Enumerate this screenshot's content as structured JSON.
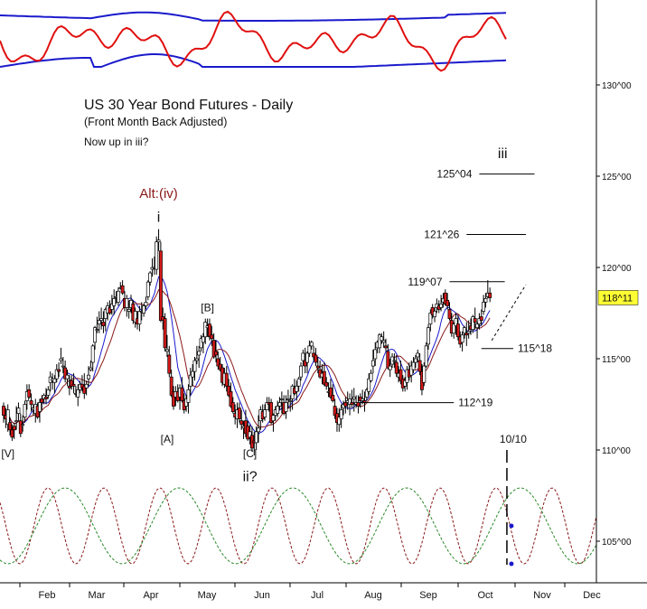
{
  "chart_data": {
    "type": "candlestick",
    "title": "US 30 Year Bond Futures - Daily",
    "subtitle": "(Front Month Back Adjusted)",
    "note": "Now up in iii?",
    "y_ticks": [
      "130^00",
      "125^00",
      "120^00",
      "115^00",
      "110^00",
      "105^00"
    ],
    "x_ticks": [
      "Feb",
      "Mar",
      "Apr",
      "May",
      "Jun",
      "Jul",
      "Aug",
      "Sep",
      "Oct",
      "Nov",
      "Dec"
    ],
    "last_price": "118^11",
    "price_range": [
      103,
      134
    ],
    "wave_labels": [
      {
        "text": "[V]",
        "date_index": 2,
        "price": 109.6
      },
      {
        "text": "i",
        "date_index": 73,
        "price": 122.5
      },
      {
        "text": "Alt:(iv)",
        "date_index": 73,
        "price": 123.8,
        "color": "#8b1a1a"
      },
      {
        "text": "[A]",
        "date_index": 77,
        "price": 110.4
      },
      {
        "text": "[B]",
        "date_index": 96,
        "price": 117.6
      },
      {
        "text": "[C]",
        "date_index": 116,
        "price": 109.6
      },
      {
        "text": "ii?",
        "date_index": 116,
        "price": 108.3
      },
      {
        "text": "iii",
        "date_index": 235,
        "price": 126.0
      }
    ],
    "levels": [
      {
        "label": "125^04",
        "price": 125.12,
        "from_index": 224,
        "to_index": 250
      },
      {
        "label": "121^26",
        "price": 121.81,
        "from_index": 218,
        "to_index": 246
      },
      {
        "label": "119^07",
        "price": 119.22,
        "from_index": 210,
        "to_index": 236
      },
      {
        "label": "115^18",
        "price": 115.56,
        "from_index": 225,
        "to_index": 240
      },
      {
        "label": "112^19",
        "price": 112.59,
        "from_index": 168,
        "to_index": 212
      }
    ],
    "cycle_marker": {
      "label": "10/10",
      "date_index": 237
    },
    "candles": [
      [
        112.4,
        112.6,
        111.5,
        111.9
      ],
      [
        111.9,
        112.3,
        111.2,
        111.7
      ],
      [
        111.4,
        112.5,
        111.0,
        112.2
      ],
      [
        111.5,
        111.8,
        110.8,
        111.1
      ],
      [
        111.1,
        111.4,
        110.5,
        110.7
      ],
      [
        111.3,
        111.5,
        110.6,
        111.1
      ],
      [
        111.6,
        112.4,
        111.1,
        111.6
      ],
      [
        112.0,
        112.6,
        111.6,
        112.3
      ],
      [
        111.6,
        112.0,
        110.7,
        110.9
      ],
      [
        111.4,
        111.9,
        111.0,
        111.4
      ],
      [
        111.8,
        112.7,
        111.5,
        112.5
      ],
      [
        112.7,
        113.6,
        112.2,
        113.2
      ],
      [
        113.3,
        113.6,
        112.8,
        112.9
      ],
      [
        112.7,
        113.1,
        112.1,
        112.5
      ],
      [
        112.2,
        112.5,
        111.9,
        112.3
      ],
      [
        112.0,
        112.8,
        111.5,
        112.5
      ],
      [
        112.4,
        112.6,
        111.7,
        111.8
      ],
      [
        112.1,
        112.8,
        111.5,
        112.6
      ],
      [
        112.8,
        113.0,
        112.2,
        112.6
      ],
      [
        112.8,
        113.1,
        112.5,
        113.0
      ],
      [
        112.9,
        113.4,
        112.5,
        112.8
      ],
      [
        113.0,
        113.5,
        112.8,
        113.3
      ],
      [
        113.7,
        114.3,
        113.2,
        114.0
      ],
      [
        113.8,
        114.2,
        113.3,
        113.9
      ],
      [
        113.7,
        114.1,
        113.1,
        113.9
      ],
      [
        113.9,
        114.7,
        113.7,
        114.4
      ],
      [
        114.4,
        114.8,
        114.0,
        114.3
      ],
      [
        114.9,
        115.6,
        114.7,
        115.0
      ],
      [
        114.6,
        115.1,
        114.2,
        114.6
      ],
      [
        114.5,
        114.9,
        113.7,
        113.9
      ],
      [
        113.9,
        114.4,
        113.5,
        114.1
      ],
      [
        113.5,
        114.1,
        113.0,
        113.4
      ],
      [
        113.8,
        114.1,
        113.3,
        113.5
      ],
      [
        113.6,
        114.2,
        113.1,
        113.5
      ],
      [
        113.1,
        113.5,
        112.9,
        113.1
      ],
      [
        112.9,
        113.6,
        112.4,
        113.3
      ],
      [
        113.3,
        113.8,
        113.1,
        113.6
      ],
      [
        113.6,
        114.1,
        113.2,
        113.4
      ],
      [
        113.5,
        114.2,
        112.8,
        113.1
      ],
      [
        113.4,
        113.8,
        113.0,
        113.6
      ],
      [
        113.9,
        114.6,
        113.5,
        114.1
      ],
      [
        114.4,
        114.9,
        114.3,
        114.5
      ],
      [
        114.8,
        115.8,
        114.3,
        115.7
      ],
      [
        115.9,
        116.8,
        115.5,
        116.7
      ],
      [
        116.6,
        117.3,
        116.4,
        116.6
      ],
      [
        116.9,
        117.6,
        116.4,
        117.1
      ],
      [
        117.1,
        117.8,
        116.6,
        117.2
      ],
      [
        117.0,
        117.6,
        116.4,
        116.8
      ],
      [
        117.2,
        117.8,
        116.5,
        117.7
      ],
      [
        117.5,
        118.1,
        117.1,
        117.9
      ],
      [
        117.8,
        118.2,
        117.4,
        117.5
      ],
      [
        117.7,
        118.5,
        117.4,
        118.0
      ],
      [
        117.9,
        118.8,
        117.4,
        118.3
      ],
      [
        118.4,
        118.7,
        118.0,
        118.4
      ],
      [
        118.1,
        118.9,
        117.9,
        118.7
      ],
      [
        118.9,
        119.2,
        118.8,
        118.9
      ],
      [
        119.0,
        119.3,
        118.5,
        118.6
      ],
      [
        118.3,
        118.7,
        117.6,
        117.8
      ],
      [
        117.8,
        118.5,
        117.3,
        118.3
      ],
      [
        117.6,
        118.2,
        117.2,
        117.7
      ],
      [
        117.8,
        118.5,
        117.5,
        118.2
      ],
      [
        118.0,
        118.2,
        116.9,
        117.1
      ],
      [
        117.0,
        117.8,
        116.7,
        117.6
      ],
      [
        117.2,
        117.6,
        116.6,
        116.9
      ],
      [
        116.9,
        117.9,
        116.5,
        117.6
      ],
      [
        117.6,
        118.1,
        117.1,
        117.6
      ],
      [
        117.5,
        118.0,
        117.3,
        117.9
      ],
      [
        117.9,
        118.4,
        117.7,
        118.1
      ],
      [
        118.4,
        119.3,
        118.2,
        119.2
      ],
      [
        119.2,
        119.8,
        119.0,
        119.7
      ],
      [
        119.9,
        120.5,
        119.5,
        120.0
      ],
      [
        120.0,
        120.6,
        119.6,
        120.0
      ],
      [
        119.9,
        121.7,
        119.6,
        121.4
      ],
      [
        121.4,
        122.1,
        120.9,
        121.5
      ],
      [
        120.9,
        121.4,
        117.0,
        117.1
      ],
      [
        117.3,
        117.8,
        116.6,
        117.1
      ],
      [
        117.2,
        117.5,
        115.4,
        115.6
      ],
      [
        115.4,
        116.3,
        115.1,
        115.5
      ],
      [
        115.2,
        115.7,
        114.0,
        114.2
      ],
      [
        114.0,
        114.4,
        112.9,
        113.0
      ],
      [
        113.2,
        113.5,
        112.2,
        112.4
      ],
      [
        112.9,
        113.5,
        112.4,
        113.2
      ],
      [
        113.2,
        113.6,
        112.6,
        112.7
      ],
      [
        112.9,
        113.6,
        112.2,
        113.4
      ],
      [
        113.4,
        114.0,
        112.6,
        112.7
      ],
      [
        112.7,
        113.1,
        112.0,
        112.2
      ],
      [
        112.4,
        113.0,
        112.1,
        112.8
      ],
      [
        112.6,
        113.6,
        112.0,
        113.3
      ],
      [
        113.5,
        114.5,
        113.0,
        114.1
      ],
      [
        114.0,
        114.7,
        113.5,
        114.3
      ],
      [
        114.3,
        115.1,
        113.8,
        114.9
      ],
      [
        114.9,
        115.7,
        114.7,
        115.0
      ],
      [
        115.2,
        115.7,
        114.5,
        115.4
      ],
      [
        115.6,
        116.3,
        115.4,
        116.1
      ],
      [
        115.9,
        116.4,
        115.3,
        116.2
      ],
      [
        116.2,
        117.2,
        115.8,
        117.0
      ],
      [
        116.7,
        117.2,
        116.2,
        116.8
      ],
      [
        116.9,
        117.2,
        116.0,
        116.2
      ],
      [
        116.3,
        116.8,
        115.7,
        116.1
      ],
      [
        116.0,
        116.4,
        115.0,
        115.1
      ],
      [
        115.4,
        116.0,
        114.8,
        115.2
      ],
      [
        115.0,
        115.4,
        114.4,
        114.6
      ],
      [
        114.7,
        115.1,
        114.3,
        114.4
      ],
      [
        114.5,
        114.7,
        113.5,
        113.7
      ],
      [
        113.6,
        114.5,
        113.4,
        114.2
      ],
      [
        114.2,
        114.6,
        113.2,
        113.5
      ],
      [
        113.5,
        113.9,
        112.9,
        113.0
      ],
      [
        113.2,
        113.7,
        112.3,
        112.4
      ],
      [
        112.6,
        112.9,
        112.0,
        112.1
      ],
      [
        112.0,
        112.5,
        111.4,
        111.8
      ],
      [
        111.7,
        112.6,
        111.2,
        112.2
      ],
      [
        112.3,
        112.6,
        111.5,
        111.7
      ],
      [
        111.6,
        112.2,
        111.1,
        111.4
      ],
      [
        111.2,
        111.6,
        110.6,
        111.3
      ],
      [
        111.6,
        112.2,
        110.7,
        110.9
      ],
      [
        111.3,
        111.6,
        110.5,
        110.6
      ],
      [
        110.7,
        111.4,
        110.3,
        111.0
      ],
      [
        110.8,
        111.3,
        109.9,
        110.1
      ],
      [
        110.5,
        111.0,
        109.7,
        110.4
      ],
      [
        110.4,
        111.3,
        110.0,
        111.0
      ],
      [
        111.0,
        111.9,
        110.4,
        111.2
      ],
      [
        111.6,
        112.4,
        111.1,
        112.2
      ],
      [
        112.1,
        112.5,
        111.5,
        111.7
      ],
      [
        111.8,
        112.5,
        111.6,
        112.2
      ],
      [
        112.2,
        112.9,
        112.2,
        112.6
      ],
      [
        112.6,
        112.9,
        112.1,
        112.5
      ],
      [
        112.6,
        112.8,
        111.4,
        111.5
      ],
      [
        111.6,
        112.0,
        111.0,
        111.9
      ],
      [
        111.9,
        112.4,
        111.6,
        112.2
      ],
      [
        112.0,
        112.7,
        111.8,
        112.4
      ],
      [
        112.4,
        112.9,
        112.2,
        112.6
      ],
      [
        112.8,
        113.2,
        112.0,
        112.8
      ],
      [
        112.6,
        113.0,
        111.9,
        112.0
      ],
      [
        112.1,
        113.0,
        111.7,
        112.6
      ],
      [
        112.8,
        113.3,
        112.3,
        112.8
      ],
      [
        112.7,
        113.0,
        112.1,
        112.7
      ],
      [
        112.8,
        113.6,
        112.2,
        113.5
      ],
      [
        113.4,
        113.9,
        113.0,
        113.1
      ],
      [
        113.2,
        113.8,
        112.7,
        113.5
      ],
      [
        113.5,
        114.0,
        113.2,
        113.9
      ],
      [
        114.0,
        114.8,
        113.8,
        114.6
      ],
      [
        114.9,
        115.5,
        114.6,
        115.3
      ],
      [
        114.9,
        115.6,
        114.2,
        114.6
      ],
      [
        114.8,
        115.4,
        114.2,
        115.3
      ],
      [
        115.3,
        116.0,
        115.1,
        115.7
      ],
      [
        115.7,
        116.0,
        115.5,
        115.9
      ],
      [
        115.3,
        115.7,
        114.9,
        115.1
      ],
      [
        115.2,
        115.6,
        114.6,
        114.8
      ],
      [
        114.6,
        115.1,
        114.2,
        114.5
      ],
      [
        114.4,
        114.9,
        113.9,
        114.0
      ],
      [
        114.0,
        114.7,
        113.6,
        114.2
      ],
      [
        114.3,
        114.8,
        113.5,
        113.6
      ],
      [
        113.7,
        114.0,
        113.3,
        113.5
      ],
      [
        113.2,
        113.7,
        112.9,
        113.2
      ],
      [
        113.4,
        113.9,
        112.8,
        112.9
      ],
      [
        113.0,
        113.6,
        112.6,
        112.7
      ],
      [
        112.4,
        112.8,
        111.7,
        111.9
      ],
      [
        112.0,
        112.3,
        111.0,
        111.5
      ],
      [
        111.4,
        112.3,
        111.0,
        111.8
      ],
      [
        111.7,
        112.5,
        111.2,
        112.2
      ],
      [
        112.3,
        112.7,
        111.9,
        112.5
      ],
      [
        112.6,
        112.9,
        112.0,
        112.4
      ],
      [
        112.6,
        113.2,
        112.2,
        112.7
      ],
      [
        112.5,
        113.1,
        111.9,
        112.8
      ],
      [
        112.6,
        113.3,
        112.3,
        112.5
      ],
      [
        112.8,
        113.4,
        112.1,
        112.9
      ],
      [
        112.5,
        113.0,
        112.3,
        112.6
      ],
      [
        112.6,
        113.0,
        112.0,
        112.4
      ],
      [
        112.9,
        113.1,
        112.3,
        112.7
      ],
      [
        112.7,
        113.3,
        112.5,
        112.8
      ],
      [
        112.7,
        113.2,
        112.1,
        112.6
      ],
      [
        112.9,
        113.4,
        112.7,
        113.3
      ],
      [
        113.2,
        114.2,
        113.0,
        113.9
      ],
      [
        113.8,
        114.4,
        113.7,
        114.2
      ],
      [
        114.6,
        115.5,
        114.2,
        114.9
      ],
      [
        115.0,
        115.9,
        114.6,
        115.5
      ],
      [
        115.6,
        116.0,
        115.3,
        115.9
      ],
      [
        115.6,
        116.4,
        115.3,
        116.3
      ],
      [
        116.0,
        116.4,
        115.8,
        116.2
      ],
      [
        115.9,
        116.5,
        115.6,
        116.0
      ],
      [
        115.7,
        116.1,
        115.4,
        115.6
      ],
      [
        115.4,
        115.8,
        114.4,
        114.5
      ],
      [
        114.4,
        115.0,
        114.0,
        114.6
      ],
      [
        114.7,
        115.3,
        114.5,
        115.1
      ],
      [
        114.9,
        115.3,
        114.5,
        114.9
      ],
      [
        114.8,
        115.2,
        114.0,
        114.2
      ],
      [
        114.0,
        114.6,
        113.7,
        114.2
      ],
      [
        114.4,
        114.9,
        113.6,
        113.8
      ],
      [
        113.9,
        114.1,
        113.2,
        113.4
      ],
      [
        113.5,
        114.0,
        113.2,
        113.8
      ],
      [
        113.7,
        114.6,
        113.3,
        114.4
      ],
      [
        114.4,
        114.8,
        113.8,
        114.0
      ],
      [
        114.1,
        114.9,
        113.7,
        114.6
      ],
      [
        114.4,
        115.1,
        114.2,
        114.8
      ],
      [
        114.8,
        115.2,
        114.5,
        115.0
      ],
      [
        115.1,
        115.5,
        114.8,
        115.3
      ],
      [
        114.9,
        115.3,
        114.1,
        114.3
      ],
      [
        114.3,
        114.7,
        113.0,
        113.3
      ],
      [
        113.7,
        114.8,
        113.5,
        114.6
      ],
      [
        114.6,
        115.9,
        114.5,
        115.7
      ],
      [
        115.8,
        116.9,
        115.5,
        116.7
      ],
      [
        116.9,
        117.7,
        116.5,
        117.5
      ],
      [
        117.8,
        118.0,
        117.2,
        117.4
      ],
      [
        117.3,
        117.8,
        117.0,
        117.6
      ],
      [
        117.8,
        118.3,
        117.5,
        118.0
      ],
      [
        117.9,
        118.2,
        117.5,
        117.7
      ],
      [
        117.8,
        118.5,
        117.6,
        118.0
      ],
      [
        118.1,
        118.6,
        117.8,
        118.3
      ],
      [
        118.6,
        118.8,
        117.9,
        118.0
      ],
      [
        118.2,
        118.6,
        117.7,
        117.9
      ],
      [
        117.7,
        118.1,
        117.1,
        117.2
      ],
      [
        117.1,
        117.5,
        116.2,
        116.4
      ],
      [
        116.4,
        117.0,
        116.1,
        116.9
      ],
      [
        116.8,
        117.5,
        116.3,
        117.2
      ],
      [
        116.9,
        117.4,
        116.0,
        116.2
      ],
      [
        116.2,
        116.5,
        115.6,
        115.8
      ],
      [
        115.9,
        116.5,
        115.4,
        116.3
      ],
      [
        116.4,
        116.8,
        116.1,
        116.7
      ],
      [
        116.4,
        117.0,
        115.7,
        116.3
      ],
      [
        116.4,
        117.1,
        116.1,
        116.5
      ],
      [
        116.8,
        117.2,
        116.3,
        116.6
      ],
      [
        116.6,
        117.4,
        116.4,
        117.3
      ],
      [
        117.2,
        117.8,
        116.6,
        117.0
      ],
      [
        116.7,
        117.0,
        116.1,
        116.9
      ],
      [
        116.9,
        117.5,
        116.6,
        117.2
      ],
      [
        117.3,
        117.7,
        116.8,
        117.1
      ],
      [
        117.6,
        118.5,
        117.4,
        118.1
      ],
      [
        118.1,
        118.6,
        117.8,
        118.3
      ],
      [
        118.4,
        119.3,
        118.3,
        118.6
      ],
      [
        118.6,
        118.9,
        118.1,
        118.34
      ]
    ]
  }
}
